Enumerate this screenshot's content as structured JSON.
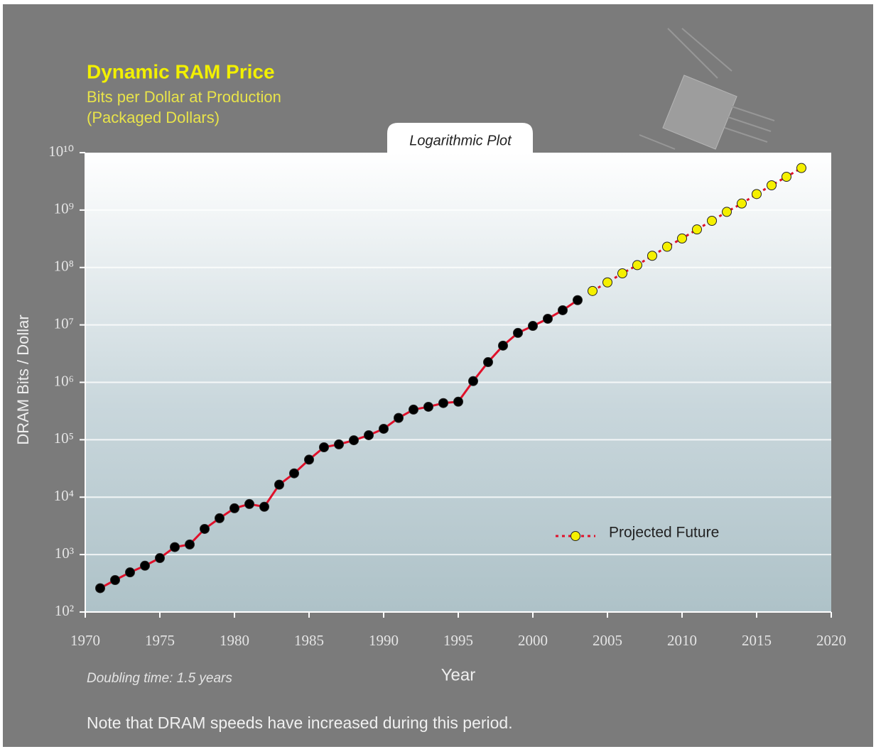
{
  "chart_data": {
    "type": "line",
    "title": "Dynamic RAM Price",
    "subtitle": [
      "Bits per Dollar at Production",
      "(Packaged Dollars)"
    ],
    "badge": "Logarithmic Plot",
    "x_label": "Year",
    "y_label": "DRAM Bits / Dollar",
    "annotations": [
      "Doubling time: 1.5 years",
      "Note that DRAM speeds have increased during this period."
    ],
    "y_log": true,
    "grid": true,
    "xlim": [
      1970,
      2020
    ],
    "xticks": [
      1970,
      1975,
      1980,
      1985,
      1990,
      1995,
      2000,
      2005,
      2010,
      2015,
      2020
    ],
    "ylim": [
      100,
      10000000000
    ],
    "yticks": [
      {
        "value": 100,
        "label": "10²"
      },
      {
        "value": 1000,
        "label": "10³"
      },
      {
        "value": 10000,
        "label": "10⁴"
      },
      {
        "value": 100000,
        "label": "10⁵"
      },
      {
        "value": 1000000,
        "label": "10⁶"
      },
      {
        "value": 10000000,
        "label": "10⁷"
      },
      {
        "value": 100000000,
        "label": "10⁸"
      },
      {
        "value": 1000000000,
        "label": "10⁹"
      },
      {
        "value": 10000000000,
        "label": "10¹⁰"
      }
    ],
    "series": [
      {
        "color": "#000000",
        "line_color": "#e0102a",
        "dashed": false,
        "x": [
          1971,
          1972,
          1973,
          1974,
          1975,
          1976,
          1977,
          1978,
          1979,
          1980,
          1981,
          1982,
          1983,
          1984,
          1985,
          1986,
          1987,
          1988,
          1989,
          1990,
          1991,
          1992,
          1993,
          1994,
          1995,
          1996,
          1997,
          1998,
          1999,
          2000,
          2001,
          2002,
          2003
        ],
        "values": [
          260,
          360,
          490,
          640,
          870,
          1350,
          1500,
          2800,
          4300,
          6400,
          7600,
          6800,
          16500,
          26000,
          45000,
          74000,
          83000,
          98000,
          120000,
          155000,
          240000,
          335000,
          375000,
          435000,
          460000,
          1050000,
          2250000,
          4350000,
          7250000,
          9600000,
          12800000,
          18000000,
          27000000
        ]
      },
      {
        "name": "Projected Future",
        "color": "#f5f000",
        "line_color": "#e0102a",
        "dashed": true,
        "x": [
          2004,
          2005,
          2006,
          2007,
          2008,
          2009,
          2010,
          2011,
          2012,
          2013,
          2014,
          2015,
          2016,
          2017,
          2018
        ],
        "values": [
          39000000,
          55000000,
          79000000,
          110000000,
          160000000,
          230000000,
          320000000,
          460000000,
          650000000,
          930000000,
          1300000000,
          1900000000,
          2700000000,
          3800000000,
          5400000000
        ]
      }
    ]
  }
}
